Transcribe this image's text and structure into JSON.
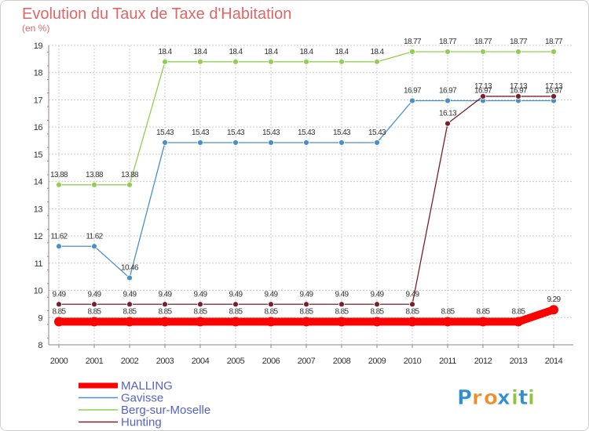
{
  "chart_data": {
    "type": "line",
    "title": "Evolution du Taux de Taxe d'Habitation",
    "subtitle": "(en %)",
    "xlabel": "",
    "ylabel": "",
    "ylim": [
      8,
      19
    ],
    "yticks": [
      "8",
      "9",
      "10",
      "11",
      "12",
      "13",
      "14",
      "15",
      "16",
      "17",
      "18",
      "19"
    ],
    "categories": [
      "2000",
      "2001",
      "2002",
      "2003",
      "2004",
      "2005",
      "2006",
      "2007",
      "2008",
      "2009",
      "2010",
      "2011",
      "2012",
      "2013",
      "2014"
    ],
    "grid": true,
    "legend_position": "bottom-left",
    "series": [
      {
        "name": "Berg-sur-Moselle",
        "color": "#8fd14f",
        "values": [
          13.88,
          13.88,
          13.88,
          18.4,
          18.4,
          18.4,
          18.4,
          18.4,
          18.4,
          18.4,
          18.77,
          18.77,
          18.77,
          18.77,
          18.77
        ],
        "labels": [
          "13.88",
          "13.88",
          "13.88",
          "18.4",
          "18.4",
          "18.4",
          "18.4",
          "18.4",
          "18.4",
          "18.4",
          "18.77",
          "18.77",
          "18.77",
          "18.77",
          "18.77"
        ]
      },
      {
        "name": "Gavisse",
        "color": "#4a90c8",
        "values": [
          11.62,
          11.62,
          10.46,
          15.43,
          15.43,
          15.43,
          15.43,
          15.43,
          15.43,
          15.43,
          16.97,
          16.97,
          16.97,
          16.97,
          16.97
        ],
        "labels": [
          "11.62",
          "11.62",
          "10.46",
          "15.43",
          "15.43",
          "15.43",
          "15.43",
          "15.43",
          "15.43",
          "15.43",
          "16.97",
          "16.97",
          "16.97",
          "16.97",
          "16.97"
        ]
      },
      {
        "name": "Hunting",
        "color": "#7a1f2b",
        "values": [
          9.49,
          9.49,
          9.49,
          9.49,
          9.49,
          9.49,
          9.49,
          9.49,
          9.49,
          9.49,
          9.49,
          16.13,
          17.13,
          17.13,
          17.13
        ],
        "labels": [
          "9.49",
          "9.49",
          "9.49",
          "9.49",
          "9.49",
          "9.49",
          "9.49",
          "9.49",
          "9.49",
          "9.49",
          "9.49",
          "16.13",
          "17.13",
          "17.13",
          "17.13"
        ]
      },
      {
        "name": "MALLING",
        "color": "#ff0000",
        "values": [
          8.85,
          8.85,
          8.85,
          8.85,
          8.85,
          8.85,
          8.85,
          8.85,
          8.85,
          8.85,
          8.85,
          8.85,
          8.85,
          8.85,
          9.29
        ],
        "labels": [
          "8.85",
          "8.85",
          "8.85",
          "8.85",
          "8.85",
          "8.85",
          "8.85",
          "8.85",
          "8.85",
          "8.85",
          "8.85",
          "8.85",
          "8.85",
          "8.85",
          "9.29"
        ]
      }
    ],
    "legend": [
      "MALLING",
      "Gavisse",
      "Berg-sur-Moselle",
      "Hunting"
    ]
  },
  "logo": {
    "text": "Proxiti",
    "colors": [
      "#2e8fd1",
      "#f28c28",
      "#f28c28",
      "#2e8fd1",
      "#8fc440",
      "#2e8fd1",
      "#8fc440"
    ]
  }
}
